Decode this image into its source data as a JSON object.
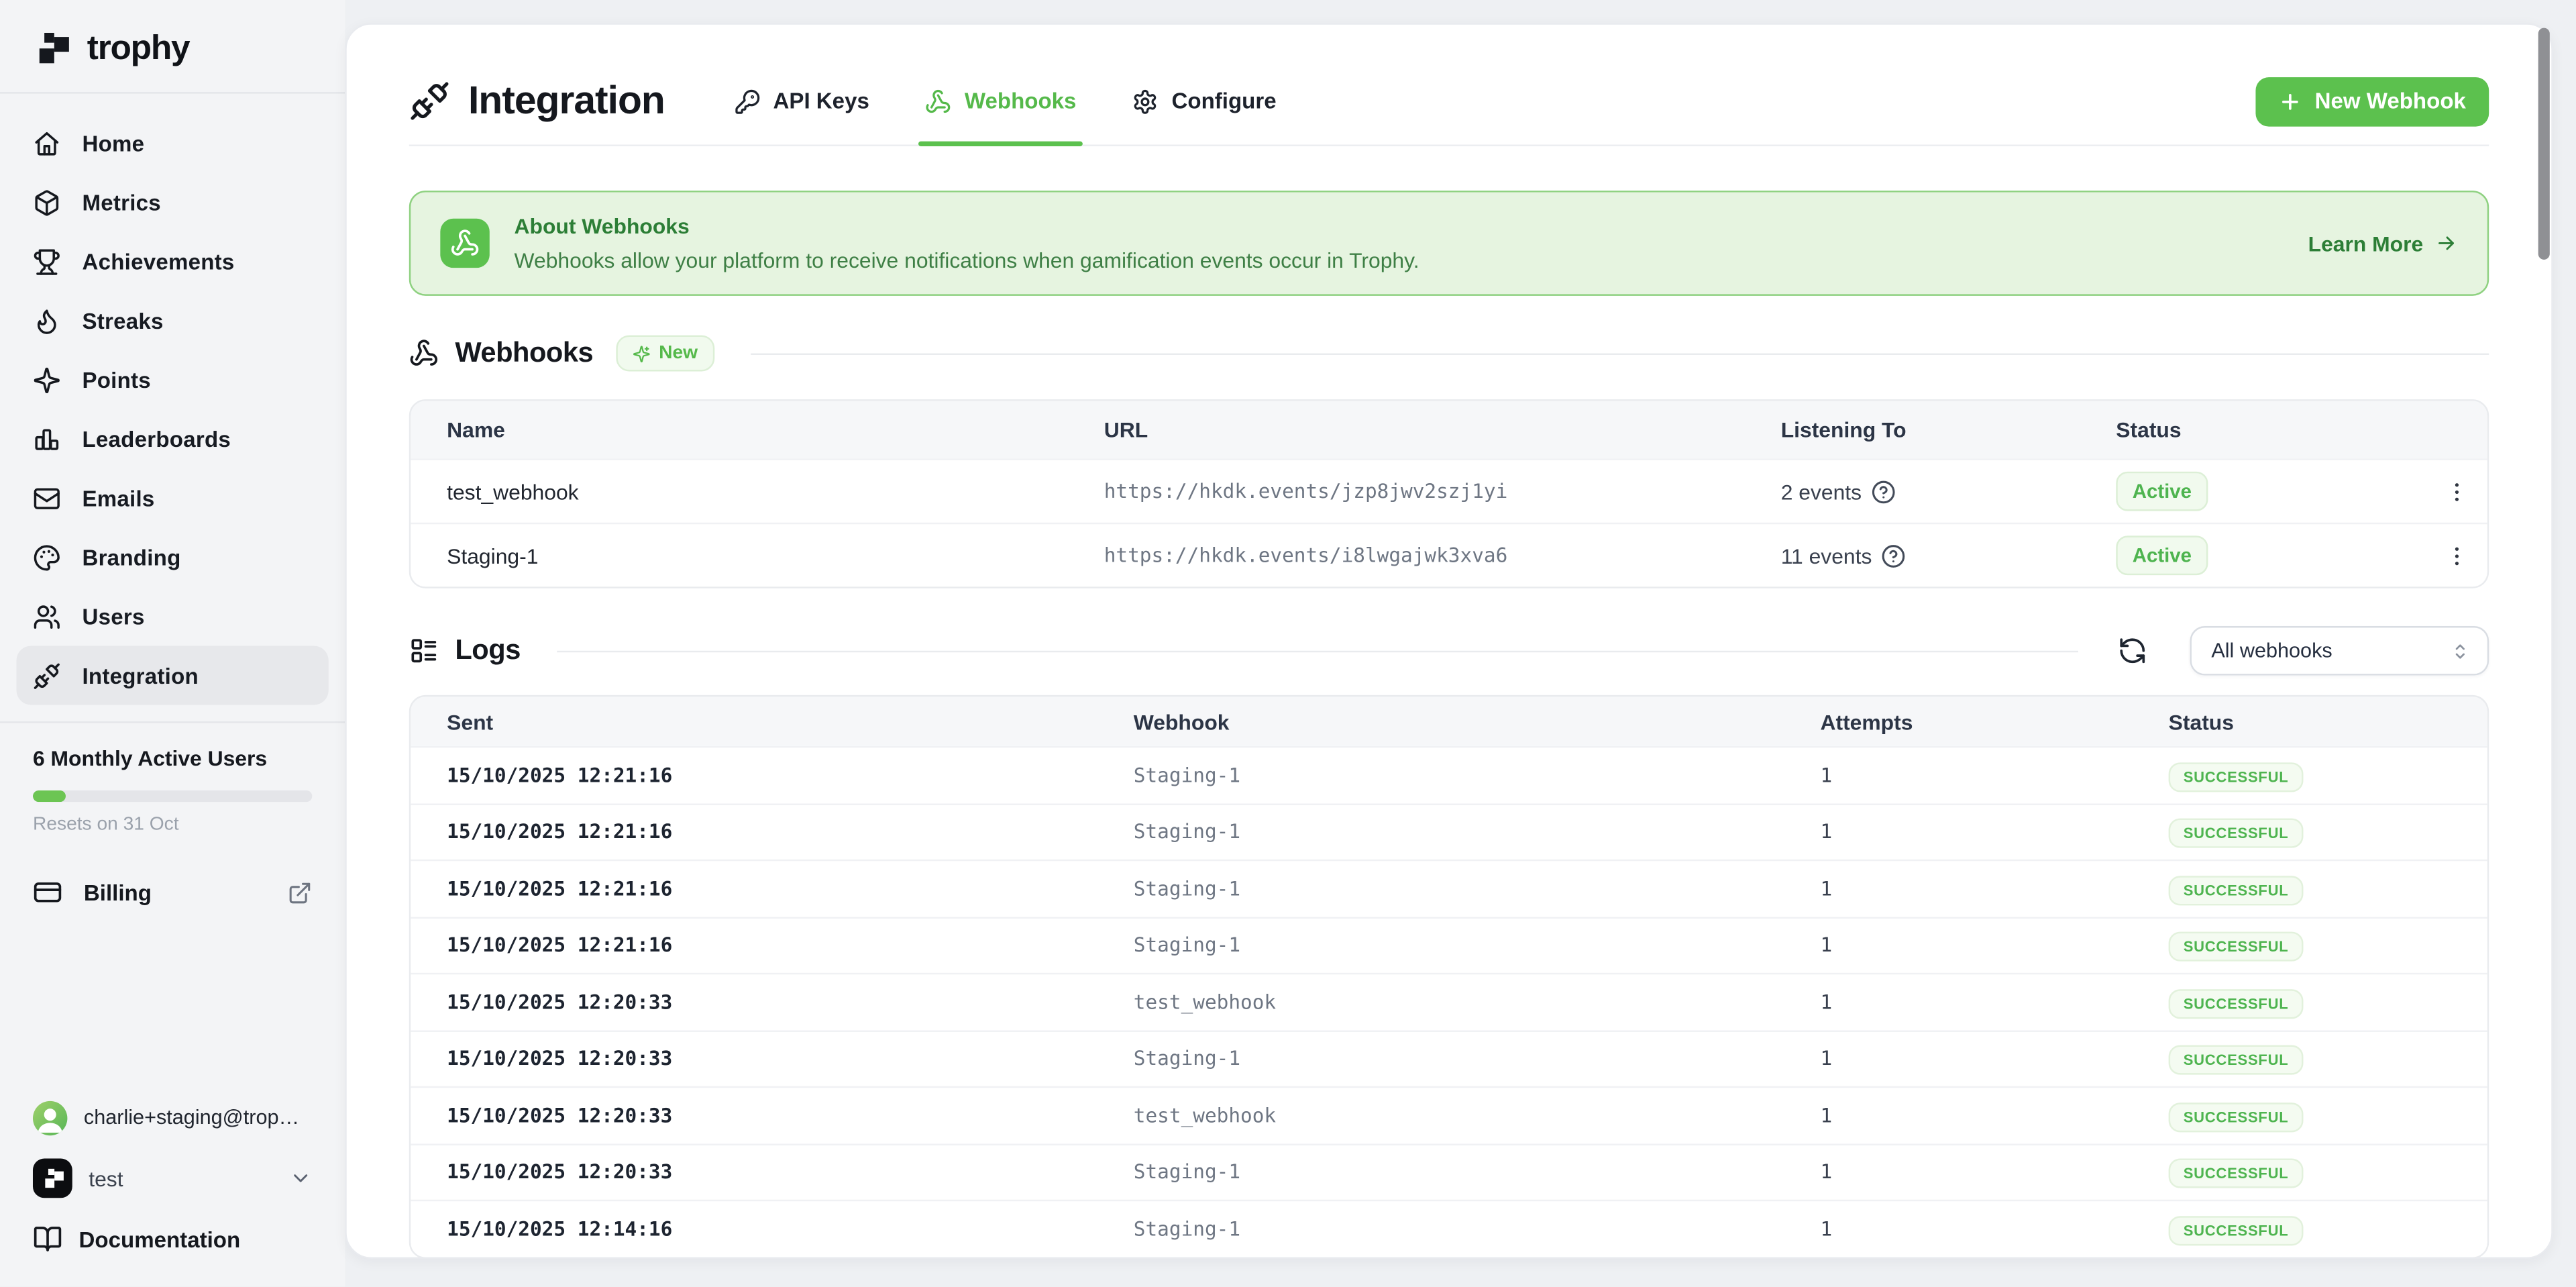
{
  "brand": {
    "name": "trophy"
  },
  "sidebar": {
    "items": [
      {
        "label": "Home"
      },
      {
        "label": "Metrics"
      },
      {
        "label": "Achievements"
      },
      {
        "label": "Streaks"
      },
      {
        "label": "Points"
      },
      {
        "label": "Leaderboards"
      },
      {
        "label": "Emails"
      },
      {
        "label": "Branding"
      },
      {
        "label": "Users"
      },
      {
        "label": "Integration",
        "active": true
      }
    ],
    "usage": {
      "title": "6 Monthly Active Users",
      "progress_pct": 12,
      "resets": "Resets on 31 Oct"
    },
    "billing": {
      "label": "Billing"
    },
    "account": {
      "email": "charlie+staging@trop…",
      "workspace": "test",
      "docs_label": "Documentation"
    }
  },
  "header": {
    "title": "Integration",
    "tabs": [
      {
        "label": "API Keys",
        "active": false
      },
      {
        "label": "Webhooks",
        "active": true
      },
      {
        "label": "Configure",
        "active": false
      }
    ],
    "new_webhook_label": "New Webhook"
  },
  "banner": {
    "title": "About Webhooks",
    "description": "Webhooks allow your platform to receive notifications when gamification events occur in Trophy.",
    "link_label": "Learn More"
  },
  "webhooks": {
    "title": "Webhooks",
    "badge": "New",
    "headers": {
      "name": "Name",
      "url": "URL",
      "listening": "Listening To",
      "status": "Status"
    },
    "rows": [
      {
        "name": "test_webhook",
        "url": "https://hkdk.events/jzp8jwv2szj1yi",
        "listening": "2 events",
        "status": "Active"
      },
      {
        "name": "Staging-1",
        "url": "https://hkdk.events/i8lwgajwk3xva6",
        "listening": "11 events",
        "status": "Active"
      }
    ]
  },
  "logs": {
    "title": "Logs",
    "filter_value": "All webhooks",
    "headers": {
      "sent": "Sent",
      "webhook": "Webhook",
      "attempts": "Attempts",
      "status": "Status"
    },
    "rows": [
      {
        "sent": "15/10/2025 12:21:16",
        "webhook": "Staging-1",
        "attempts": "1",
        "status": "SUCCESSFUL"
      },
      {
        "sent": "15/10/2025 12:21:16",
        "webhook": "Staging-1",
        "attempts": "1",
        "status": "SUCCESSFUL"
      },
      {
        "sent": "15/10/2025 12:21:16",
        "webhook": "Staging-1",
        "attempts": "1",
        "status": "SUCCESSFUL"
      },
      {
        "sent": "15/10/2025 12:21:16",
        "webhook": "Staging-1",
        "attempts": "1",
        "status": "SUCCESSFUL"
      },
      {
        "sent": "15/10/2025 12:20:33",
        "webhook": "test_webhook",
        "attempts": "1",
        "status": "SUCCESSFUL"
      },
      {
        "sent": "15/10/2025 12:20:33",
        "webhook": "Staging-1",
        "attempts": "1",
        "status": "SUCCESSFUL"
      },
      {
        "sent": "15/10/2025 12:20:33",
        "webhook": "test_webhook",
        "attempts": "1",
        "status": "SUCCESSFUL"
      },
      {
        "sent": "15/10/2025 12:20:33",
        "webhook": "Staging-1",
        "attempts": "1",
        "status": "SUCCESSFUL"
      },
      {
        "sent": "15/10/2025 12:14:16",
        "webhook": "Staging-1",
        "attempts": "1",
        "status": "SUCCESSFUL"
      }
    ]
  },
  "colors": {
    "accent_green": "#5cc14e",
    "banner_green_dark": "#2c7e36",
    "badge_green": "#4eb44f",
    "sidebar_bg": "#f3f4f6",
    "card_bg": "#ffffff"
  }
}
